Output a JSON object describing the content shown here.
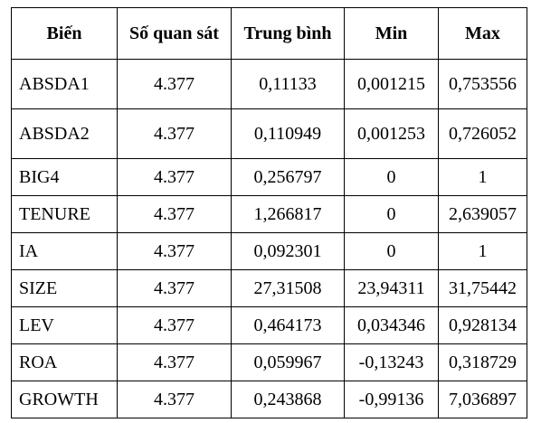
{
  "table": {
    "headers": [
      "Biến",
      "Số quan sát",
      "Trung bình",
      "Min",
      "Max"
    ],
    "rows": [
      [
        "ABSDA1",
        "4.377",
        "0,11133",
        "0,001215",
        "0,753556"
      ],
      [
        "ABSDA2",
        "4.377",
        "0,110949",
        "0,001253",
        "0,726052"
      ],
      [
        "BIG4",
        "4.377",
        "0,256797",
        "0",
        "1"
      ],
      [
        "TENURE",
        "4.377",
        "1,266817",
        "0",
        "2,639057"
      ],
      [
        "IA",
        "4.377",
        "0,092301",
        "0",
        "1"
      ],
      [
        "SIZE",
        "4.377",
        "27,31508",
        "23,94311",
        "31,75442"
      ],
      [
        "LEV",
        "4.377",
        "0,464173",
        "0,034346",
        "0,928134"
      ],
      [
        "ROA",
        "4.377",
        "0,059967",
        "-0,13243",
        "0,318729"
      ],
      [
        "GROWTH",
        "4.377",
        "0,243868",
        "-0,99136",
        "7,036897"
      ]
    ]
  }
}
